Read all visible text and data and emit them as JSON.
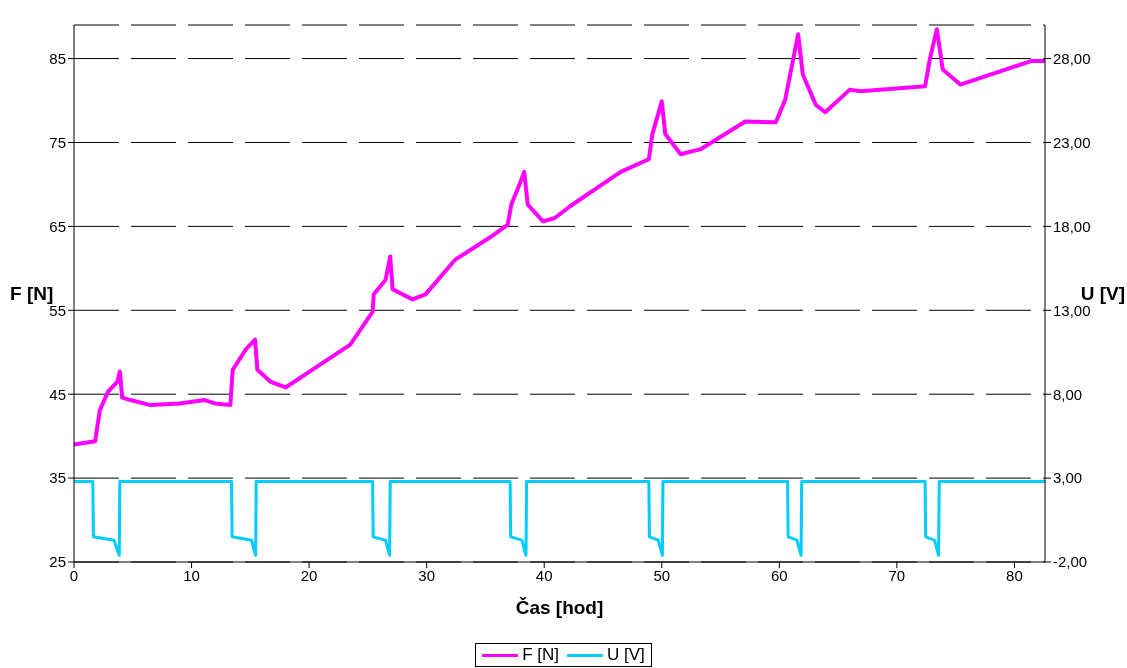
{
  "chart_data": {
    "type": "line",
    "xlabel": "Čas [hod]",
    "ylabel": "F [N]",
    "y2label": "U [V]",
    "xlim": [
      0,
      82.6
    ],
    "xticks": [
      0,
      10,
      20,
      30,
      40,
      50,
      60,
      70,
      80
    ],
    "ylim": [
      25,
      89
    ],
    "yticks": [
      25,
      35,
      45,
      55,
      65,
      75,
      85
    ],
    "y2lim": [
      -2,
      30
    ],
    "y2ticks": [
      {
        "value": -2,
        "label": "-2,00"
      },
      {
        "value": 3,
        "label": "3,00"
      },
      {
        "value": 8,
        "label": "8,00"
      },
      {
        "value": 13,
        "label": "13,00"
      },
      {
        "value": 18,
        "label": "18,00"
      },
      {
        "value": 23,
        "label": "23,00"
      },
      {
        "value": 28,
        "label": "28,00"
      }
    ],
    "grid": "y",
    "legend": "bottom",
    "marker": "none",
    "line_style": "solid",
    "series": [
      {
        "name": "F [N]",
        "color": "#ff00ff",
        "x": [
          0,
          1.8,
          2.2,
          2.9,
          3.7,
          3.9,
          4.1,
          4.8,
          6.5,
          9.0,
          11.1,
          12.0,
          13.3,
          13.5,
          14.6,
          15.4,
          15.6,
          16.7,
          18.0,
          20.9,
          23.5,
          25.4,
          25.5,
          26.5,
          26.9,
          27.1,
          28.8,
          29.9,
          32.4,
          35.4,
          36.9,
          37.2,
          37.9,
          38.3,
          38.6,
          39.9,
          40.9,
          42.2,
          46.5,
          48.9,
          49.2,
          50.0,
          50.3,
          51.6,
          53.3,
          57.1,
          59.7,
          60.5,
          61.6,
          62.0,
          63.1,
          63.9,
          66.0,
          66.9,
          72.4,
          72.8,
          73.4,
          73.9,
          75.4,
          81.4,
          82.6
        ],
        "values": [
          39.0,
          39.4,
          43.1,
          45.3,
          46.5,
          47.7,
          44.6,
          44.3,
          43.7,
          43.9,
          44.3,
          43.9,
          43.7,
          47.9,
          50.3,
          51.5,
          47.9,
          46.5,
          45.8,
          48.5,
          50.9,
          54.8,
          56.9,
          58.6,
          61.4,
          57.5,
          56.3,
          56.9,
          61.0,
          63.7,
          65.2,
          67.6,
          70.0,
          71.5,
          67.6,
          65.6,
          66.0,
          67.4,
          71.5,
          73.0,
          76.0,
          79.9,
          76.0,
          73.6,
          74.2,
          77.5,
          77.4,
          80.1,
          87.9,
          83.1,
          79.5,
          78.6,
          81.3,
          81.1,
          81.7,
          84.9,
          88.5,
          83.7,
          81.9,
          84.7,
          84.7
        ]
      },
      {
        "name": "U [V]",
        "color": "#00ccff",
        "axis": "y2",
        "x": [
          0,
          1.6,
          1.65,
          3.4,
          3.85,
          3.9,
          13.4,
          13.45,
          15.1,
          15.45,
          15.5,
          25.4,
          25.45,
          26.5,
          26.85,
          26.9,
          37.1,
          37.15,
          38.1,
          38.45,
          38.5,
          48.9,
          48.95,
          49.7,
          50.05,
          50.1,
          60.7,
          60.75,
          61.5,
          61.85,
          61.9,
          72.4,
          72.45,
          73.2,
          73.55,
          73.6,
          82.6
        ],
        "values": [
          2.8,
          2.8,
          -0.5,
          -0.7,
          -1.6,
          2.8,
          2.8,
          -0.5,
          -0.7,
          -1.6,
          2.8,
          2.8,
          -0.5,
          -0.7,
          -1.6,
          2.8,
          2.8,
          -0.5,
          -0.7,
          -1.6,
          2.8,
          2.8,
          -0.5,
          -0.7,
          -1.6,
          2.8,
          2.8,
          -0.5,
          -0.7,
          -1.6,
          2.8,
          2.8,
          -0.5,
          -0.7,
          -1.6,
          2.8,
          2.8
        ]
      }
    ]
  }
}
